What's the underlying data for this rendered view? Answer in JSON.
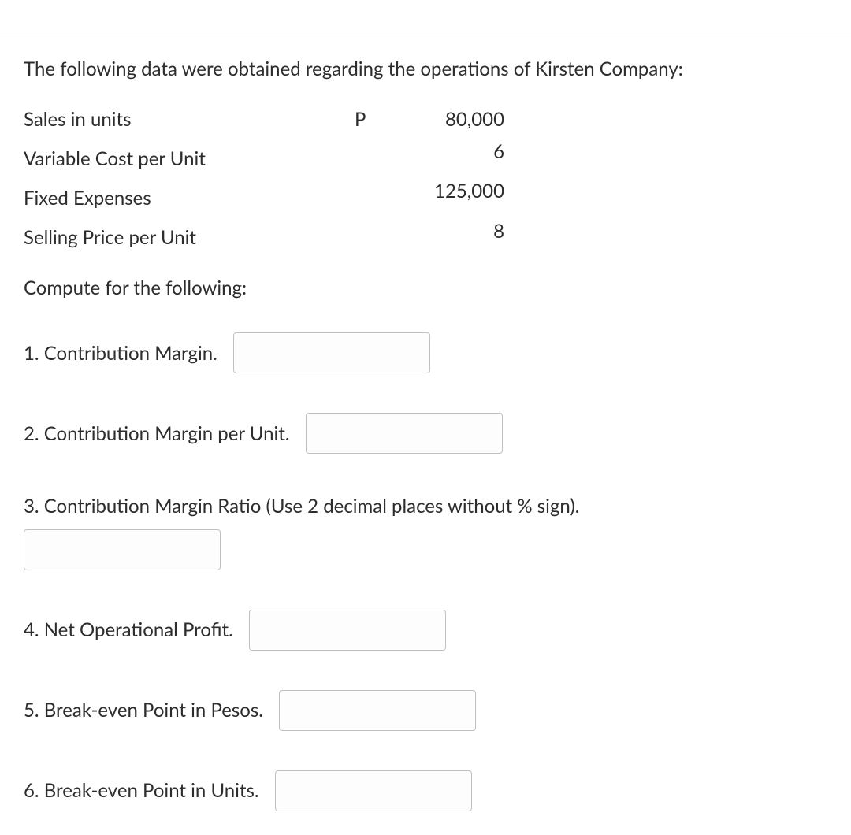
{
  "intro": "The following data were obtained regarding the operations of Kirsten Company:",
  "data": {
    "rows": [
      {
        "label": "Sales in units",
        "currency": "P",
        "value": "80,000"
      },
      {
        "label": "Variable Cost per Unit",
        "currency": "",
        "value": "6"
      },
      {
        "label": "Fixed Expenses",
        "currency": "",
        "value": "125,000"
      },
      {
        "label": "Selling Price per Unit",
        "currency": "",
        "value": "8"
      }
    ]
  },
  "compute_heading": "Compute for the following:",
  "questions": {
    "q1": {
      "label": "1. Contribution Margin.",
      "value": ""
    },
    "q2": {
      "label": "2. Contribution Margin per Unit.",
      "value": ""
    },
    "q3": {
      "label": "3. Contribution Margin Ratio (Use 2 decimal places without % sign).",
      "value": ""
    },
    "q4": {
      "label": "4. Net Operational Profit.",
      "value": ""
    },
    "q5": {
      "label": "5. Break-even Point in Pesos.",
      "value": ""
    },
    "q6": {
      "label": "6. Break-even Point in Units.",
      "value": ""
    }
  }
}
